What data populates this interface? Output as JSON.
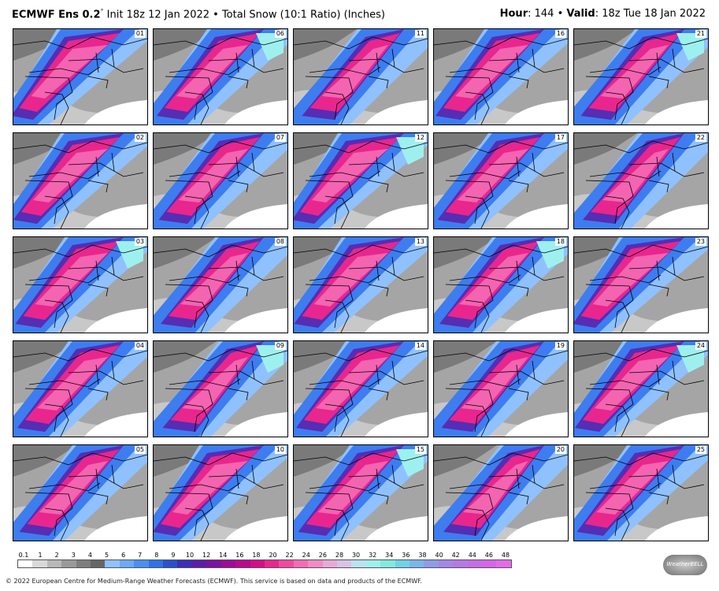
{
  "header": {
    "title_model": "ECMWF Ens 0.2",
    "title_degree": "°",
    "title_rest": " Init 18z 12 Jan 2022 • Total Snow (10:1 Ratio) (Inches)",
    "hour_label": "Hour",
    "hour_value": ": 144 • ",
    "valid_label": "Valid",
    "valid_value": ": 18z Tue 18 Jan 2022"
  },
  "panels": [
    {
      "label": "01"
    },
    {
      "label": "06"
    },
    {
      "label": "11"
    },
    {
      "label": "16"
    },
    {
      "label": "21"
    },
    {
      "label": "02"
    },
    {
      "label": "07"
    },
    {
      "label": "12"
    },
    {
      "label": "17"
    },
    {
      "label": "22"
    },
    {
      "label": "03"
    },
    {
      "label": "08"
    },
    {
      "label": "13"
    },
    {
      "label": "18"
    },
    {
      "label": "23"
    },
    {
      "label": "04"
    },
    {
      "label": "09"
    },
    {
      "label": "14"
    },
    {
      "label": "19"
    },
    {
      "label": "24"
    },
    {
      "label": "05"
    },
    {
      "label": "10"
    },
    {
      "label": "15"
    },
    {
      "label": "20"
    },
    {
      "label": "25"
    }
  ],
  "legend": {
    "labels": [
      "0.1",
      "1",
      "2",
      "3",
      "4",
      "5",
      "6",
      "7",
      "8",
      "9",
      "10",
      "12",
      "14",
      "16",
      "18",
      "20",
      "22",
      "24",
      "26",
      "28",
      "30",
      "32",
      "34",
      "36",
      "38",
      "40",
      "42",
      "44",
      "46",
      "48"
    ],
    "colors": [
      "#ffffff",
      "#d9d9d9",
      "#b8b8b8",
      "#9a9a9a",
      "#7e7e7e",
      "#666666",
      "#8fc1ff",
      "#6aaaf7",
      "#4a90f0",
      "#2f72e6",
      "#2a50cc",
      "#3c2fb6",
      "#5a1fa8",
      "#7a149e",
      "#9a0d96",
      "#b80a8e",
      "#d40f86",
      "#e8268e",
      "#f04aa0",
      "#f46cb5",
      "#f08cc6",
      "#e7aad6",
      "#d7c3e5",
      "#b9e2f0",
      "#9ef0ef",
      "#84e8e0",
      "#6fd2e8",
      "#7ab6ea",
      "#8e9ce8",
      "#a487e6",
      "#b778e6",
      "#c66de6",
      "#d466e8",
      "#e46be8"
    ],
    "logo_text": "WeatherBELL"
  },
  "footer": {
    "copyright": "© 2022 European Centre for Medium-Range Weather Forecasts (ECMWF). This service is based on data and products of the ECMWF."
  },
  "colors": {
    "gray_dark": "#6b6b6b",
    "gray_light": "#a0a0a0",
    "blue": "#3d7df0",
    "light_blue": "#8fc1ff",
    "purple": "#5a1fa8",
    "magenta": "#e8268e",
    "pink": "#f46cb5",
    "cyan": "#9ef0ef",
    "borders": "#000000"
  }
}
